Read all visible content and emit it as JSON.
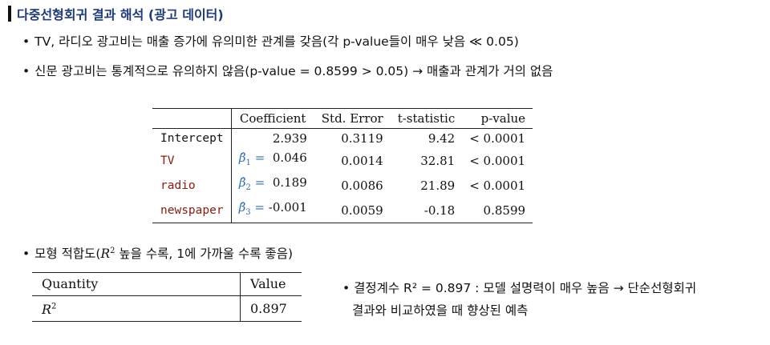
{
  "title": "다중선형회귀 결과 해석 (광고 데이터)",
  "bullets": {
    "b1": "TV, 라디오 광고비는 매출 증가에 유의미한 관계를 갖음(각 p-value들이 매우 낮음 ≪ 0.05)",
    "b2": "신문 광고비는 통계적으로 유의하지 않음(p-value = 0.8599 > 0.05) → 매출과 관계가 거의 없음",
    "b3_pre": "모형 적합도(",
    "b3_r": "R",
    "b3_sup": "2",
    "b3_post": " 높을 수록, 1에 가까울 수록 좋음)"
  },
  "regression_table": {
    "headers": [
      "",
      "Coefficient",
      "Std. Error",
      "t-statistic",
      "p-value"
    ],
    "rows": [
      {
        "var": "Intercept",
        "beta": "",
        "coef": "2.939",
        "se": "0.3119",
        "t": "9.42",
        "p": "< 0.0001"
      },
      {
        "var": "TV",
        "beta": "β̂",
        "beta_sub": "1",
        "eq": " =",
        "coef": "0.046",
        "se": "0.0014",
        "t": "32.81",
        "p": "< 0.0001"
      },
      {
        "var": "radio",
        "beta": "β̂",
        "beta_sub": "2",
        "eq": " =",
        "coef": "0.189",
        "se": "0.0086",
        "t": "21.89",
        "p": "< 0.0001"
      },
      {
        "var": "newspaper",
        "beta": "β̂",
        "beta_sub": "3",
        "eq": " =",
        "coef": "-0.001",
        "se": "0.0059",
        "t": "-0.18",
        "p": "0.8599"
      }
    ]
  },
  "fit_table": {
    "headers": [
      "Quantity",
      "Value"
    ],
    "r_label": "R",
    "r_sup": "2",
    "value": "0.897"
  },
  "note": {
    "line1": "결정계수 R² = 0.897 : 모델 설명력이 매우 높음 → 단순선형회귀",
    "line2": "결과와 비교하였을 때 향상된 예측"
  },
  "colors": {
    "title": "#1f3a7a",
    "variable_highlight": "#8b1a10",
    "beta": "#2e6db4"
  }
}
